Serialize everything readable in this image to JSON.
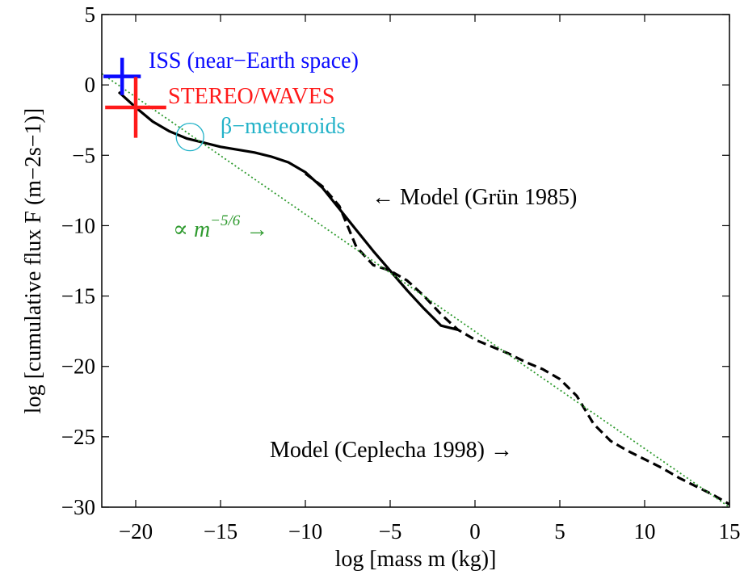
{
  "chart_data": {
    "type": "line",
    "title": "",
    "xlabel": "log [mass m (kg)]",
    "ylabel": "log [cumulative flux F (m−2s−1)]",
    "xlim": [
      -22,
      15
    ],
    "ylim": [
      -30,
      5
    ],
    "grid": false,
    "x_ticks": [
      -20,
      -15,
      -10,
      -5,
      0,
      5,
      10,
      15
    ],
    "y_ticks": [
      5,
      0,
      -5,
      -10,
      -15,
      -20,
      -25,
      -30
    ],
    "series": [
      {
        "name": "Model (Grün 1985)",
        "color": "#000000",
        "style": "solid",
        "points": [
          [
            -21,
            -0.5
          ],
          [
            -20,
            -1.6
          ],
          [
            -19,
            -2.6
          ],
          [
            -18,
            -3.3
          ],
          [
            -17,
            -3.8
          ],
          [
            -16,
            -4.1
          ],
          [
            -15,
            -4.4
          ],
          [
            -14,
            -4.6
          ],
          [
            -13,
            -4.8
          ],
          [
            -12,
            -5.1
          ],
          [
            -11,
            -5.5
          ],
          [
            -10,
            -6.2
          ],
          [
            -9,
            -7.3
          ],
          [
            -8,
            -8.8
          ],
          [
            -7,
            -10.3
          ],
          [
            -6,
            -11.8
          ],
          [
            -5,
            -13.2
          ],
          [
            -4,
            -14.6
          ],
          [
            -3,
            -15.9
          ],
          [
            -2,
            -17.1
          ],
          [
            -1,
            -17.4
          ]
        ]
      },
      {
        "name": "Model (Ceplecha 1998)",
        "color": "#000000",
        "style": "dashed",
        "points": [
          [
            -10,
            -6.3
          ],
          [
            -9,
            -7.2
          ],
          [
            -8,
            -8.6
          ],
          [
            -7,
            -11.5
          ],
          [
            -6,
            -12.8
          ],
          [
            -5,
            -13.2
          ],
          [
            -4,
            -13.9
          ],
          [
            -3,
            -15.0
          ],
          [
            -2,
            -16.3
          ],
          [
            -1,
            -17.4
          ],
          [
            0,
            -18.1
          ],
          [
            1,
            -18.6
          ],
          [
            2,
            -19.1
          ],
          [
            3,
            -19.7
          ],
          [
            4,
            -20.2
          ],
          [
            5,
            -20.9
          ],
          [
            6,
            -22.1
          ],
          [
            7,
            -24.1
          ],
          [
            8,
            -25.3
          ],
          [
            9,
            -26.0
          ],
          [
            10,
            -26.6
          ],
          [
            11,
            -27.2
          ],
          [
            12,
            -27.9
          ],
          [
            13,
            -28.5
          ],
          [
            14,
            -29.1
          ],
          [
            15,
            -29.8
          ]
        ]
      },
      {
        "name": "∝ m−5/6",
        "color": "#2e9a2e",
        "style": "dotted",
        "points": [
          [
            -22,
            0.8
          ],
          [
            15,
            -30.0
          ]
        ]
      }
    ],
    "markers": [
      {
        "name": "ISS (near−Earth space)",
        "x": -20.8,
        "y": 0.6,
        "color": "#0a0aff",
        "size": 1.1
      },
      {
        "name": "STEREO/WAVES",
        "x": -20.0,
        "y": -1.6,
        "color": "#ff1a1a",
        "size": 1.8
      }
    ],
    "circle": {
      "name": "β−meteoroids",
      "x": -16.8,
      "y": -3.7,
      "color": "#22b2c8"
    },
    "annotations": {
      "iss": {
        "text": "ISS (near−Earth space)",
        "color": "#0a0aff"
      },
      "stereo": {
        "text": "STEREO/WAVES",
        "color": "#ff1a1a"
      },
      "beta": {
        "text": "β−meteoroids",
        "color": "#22b2c8"
      },
      "grun": {
        "text": "← Model (Grün 1985)",
        "color": "#000000"
      },
      "ceplecha": {
        "text": "Model (Ceplecha 1998) →",
        "color": "#000000"
      },
      "powerlaw": {
        "prefix": "∝ m",
        "exponent": "−5/6",
        "arrow": " →",
        "color": "#2e9a2e"
      }
    }
  }
}
